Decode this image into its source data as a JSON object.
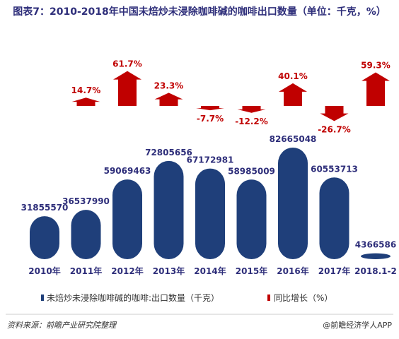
{
  "chart_data": {
    "type": "bar",
    "title": "图表7：2010-2018年中国未焙炒未浸除咖啡碱的咖啡出口数量（单位：千克，%）",
    "categories": [
      "2010年",
      "2011年",
      "2012年",
      "2013年",
      "2014年",
      "2015年",
      "2016年",
      "2017年",
      "2018.1-2"
    ],
    "series": [
      {
        "name": "未焙炒未浸除咖啡碱的咖啡:出口数量（千克）",
        "type": "bar",
        "values": [
          31855570,
          36537990,
          59069463,
          72805656,
          67172981,
          58985009,
          82665048,
          60553713,
          4366586
        ],
        "labels": [
          "31855570",
          "36537990",
          "59069463",
          "72805656",
          "67172981",
          "58985009",
          "82665048",
          "60553713",
          "4366586"
        ],
        "color": "#1f3f7a"
      },
      {
        "name": "同比增长（%）",
        "type": "arrow",
        "values": [
          null,
          14.7,
          61.7,
          23.3,
          -7.7,
          -12.2,
          40.1,
          -26.7,
          59.3
        ],
        "labels": [
          "",
          "14.7%",
          "61.7%",
          "23.3%",
          "-7.7%",
          "-12.2%",
          "40.1%",
          "-26.7%",
          "59.3%"
        ],
        "color": "#c00000"
      }
    ],
    "legend_position": "bottom",
    "grid": false
  },
  "footer": {
    "source": "资料来源：前瞻产业研究院整理",
    "credit": "@前瞻经济学人APP"
  }
}
